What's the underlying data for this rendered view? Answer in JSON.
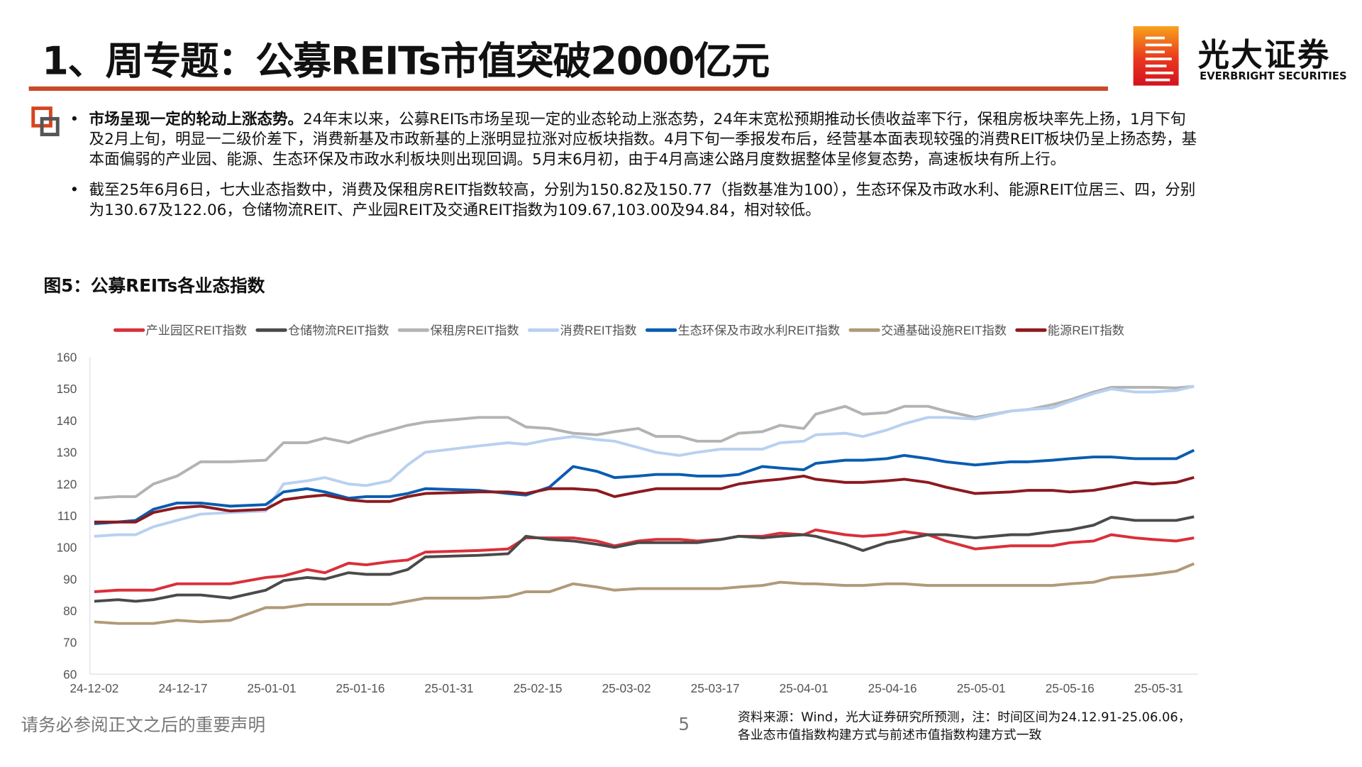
{
  "header": {
    "title": "1、周专题：公募REITs市值突破2000亿元",
    "logo_cn": "光大证券",
    "logo_en": "EVERBRIGHT SECURITIES"
  },
  "bullets": [
    {
      "lead": "市场呈现一定的轮动上涨态势。",
      "text": "24年末以来，公募REITs市场呈现一定的业态轮动上涨态势，24年末宽松预期推动长债收益率下行，保租房板块率先上扬，1月下旬及2月上旬，明显一二级价差下，消费新基及市政新基的上涨明显拉涨对应板块指数。4月下旬一季报发布后，经营基本面表现较强的消费REIT板块仍呈上扬态势，基本面偏弱的产业园、能源、生态环保及市政水利板块则出现回调。5月末6月初，由于4月高速公路月度数据整体呈修复态势，高速板块有所上行。"
    },
    {
      "lead": "",
      "text": "截至25年6月6日，七大业态指数中，消费及保租房REIT指数较高，分别为150.82及150.77（指数基准为100），生态环保及市政水利、能源REIT位居三、四，分别为130.67及122.06，仓储物流REIT、产业园REIT及交通REIT指数为109.67,103.00及94.84，相对较低。"
    }
  ],
  "figure_title": "图5：公募REITs各业态指数",
  "footer": {
    "disclaimer": "请务必参阅正文之后的重要声明",
    "page": "5",
    "source_line1": "资料来源：Wind，光大证券研究所预测，注：时间区间为24.12.91-25.06.06，",
    "source_line2": "各业态市值指数构建方式与前述市值指数构建方式一致"
  },
  "chart_data": {
    "type": "line",
    "title": "",
    "xlabel": "",
    "ylabel": "",
    "ylim": [
      60,
      160
    ],
    "yticks": [
      "60",
      "70",
      "80",
      "90",
      "100",
      "110",
      "120",
      "130",
      "140",
      "150",
      "160"
    ],
    "xticks": [
      "24-12-02",
      "24-12-17",
      "25-01-01",
      "25-01-16",
      "25-01-31",
      "25-02-15",
      "25-03-02",
      "25-03-17",
      "25-04-01",
      "25-04-16",
      "25-05-01",
      "25-05-16",
      "25-05-31"
    ],
    "grid": false,
    "legend": "top",
    "x": [
      "2024-12-02",
      "2024-12-06",
      "2024-12-09",
      "2024-12-12",
      "2024-12-16",
      "2024-12-20",
      "2024-12-25",
      "2024-12-31",
      "2025-01-03",
      "2025-01-07",
      "2025-01-10",
      "2025-01-14",
      "2025-01-17",
      "2025-01-21",
      "2025-01-24",
      "2025-01-27",
      "2025-02-05",
      "2025-02-10",
      "2025-02-13",
      "2025-02-17",
      "2025-02-21",
      "2025-02-25",
      "2025-02-28",
      "2025-03-04",
      "2025-03-07",
      "2025-03-11",
      "2025-03-14",
      "2025-03-18",
      "2025-03-21",
      "2025-03-25",
      "2025-03-28",
      "2025-04-01",
      "2025-04-03",
      "2025-04-08",
      "2025-04-11",
      "2025-04-15",
      "2025-04-18",
      "2025-04-22",
      "2025-04-25",
      "2025-04-30",
      "2025-05-06",
      "2025-05-09",
      "2025-05-13",
      "2025-05-16",
      "2025-05-20",
      "2025-05-23",
      "2025-05-27",
      "2025-05-30",
      "2025-06-03",
      "2025-06-06"
    ],
    "series": [
      {
        "name": "产业园区REIT指数",
        "color": "#d9303a",
        "values": [
          86,
          86.5,
          86.5,
          86.5,
          88.5,
          88.5,
          88.5,
          90.5,
          91,
          93,
          92,
          95,
          94.5,
          95.5,
          96,
          98.5,
          99,
          99.5,
          103,
          103,
          103,
          102,
          100.5,
          102,
          102.5,
          102.5,
          102,
          102.5,
          103.5,
          103.5,
          104.5,
          104,
          105.5,
          104,
          103.5,
          104,
          105,
          104,
          102,
          99.5,
          100.5,
          100.5,
          100.5,
          101.5,
          102,
          104,
          103,
          102.5,
          102,
          103.0
        ]
      },
      {
        "name": "仓储物流REIT指数",
        "color": "#4a4a4a",
        "values": [
          83,
          83.5,
          83,
          83.5,
          85,
          85,
          84,
          86.5,
          89.5,
          90.5,
          90,
          92,
          91.5,
          91.5,
          93,
          97,
          97.5,
          98,
          103.5,
          102.5,
          102,
          101,
          100,
          101.5,
          101.5,
          101.5,
          101.5,
          102.5,
          103.5,
          103,
          103.5,
          104,
          103.5,
          101,
          99,
          101.5,
          102.5,
          104,
          104,
          103,
          104,
          104,
          105,
          105.5,
          107,
          109.5,
          108.5,
          108.5,
          108.5,
          109.67
        ]
      },
      {
        "name": "保租房REIT指数",
        "color": "#b3b3b3",
        "values": [
          115.5,
          116,
          116,
          120,
          122.5,
          127,
          127,
          127.5,
          133,
          133,
          134.5,
          133,
          135,
          137,
          138.5,
          139.5,
          141,
          141,
          138,
          137.5,
          136,
          135.5,
          136.5,
          137.5,
          135,
          135,
          133.5,
          133.5,
          136,
          136.5,
          138.5,
          137.5,
          142,
          144.5,
          142,
          142.5,
          144.5,
          144.5,
          143,
          141,
          143,
          143.5,
          145,
          146.5,
          149,
          150.5,
          150.5,
          150.5,
          150.3,
          150.77
        ]
      },
      {
        "name": "消费REIT指数",
        "color": "#b9d0f0",
        "values": [
          103.5,
          104,
          104,
          106.5,
          108.5,
          110.5,
          111,
          111.5,
          120,
          121,
          122,
          120,
          119.5,
          121,
          126,
          130,
          132,
          133,
          132.5,
          134,
          135,
          134,
          133.5,
          131.5,
          130,
          129,
          130,
          131,
          131,
          131,
          133,
          133.5,
          135.5,
          136,
          135,
          137,
          139,
          141,
          141,
          140.5,
          143,
          143.5,
          144,
          146,
          148.5,
          150,
          149,
          149,
          149.5,
          150.82
        ]
      },
      {
        "name": "生态环保及市政水利REIT指数",
        "color": "#0a5cb0",
        "values": [
          107.5,
          108,
          108.5,
          112,
          114,
          114,
          113,
          113.5,
          117.5,
          118.5,
          117.5,
          115.5,
          116,
          116,
          117,
          118.5,
          118,
          117,
          116.5,
          119,
          125.5,
          124,
          122,
          122.5,
          123,
          123,
          122.5,
          122.5,
          123,
          125.5,
          125,
          124.5,
          126.5,
          127.5,
          127.5,
          128,
          129,
          128,
          127,
          126,
          127,
          127,
          127.5,
          128,
          128.5,
          128.5,
          128,
          128,
          128,
          130.67
        ]
      },
      {
        "name": "交通基础设施REIT指数",
        "color": "#b09a78",
        "values": [
          76.5,
          76,
          76,
          76,
          77,
          76.5,
          77,
          81,
          81,
          82,
          82,
          82,
          82,
          82,
          83,
          84,
          84,
          84.5,
          86,
          86,
          88.5,
          87.5,
          86.5,
          87,
          87,
          87,
          87,
          87,
          87.5,
          88,
          89,
          88.5,
          88.5,
          88,
          88,
          88.5,
          88.5,
          88,
          88,
          88,
          88,
          88,
          88,
          88.5,
          89,
          90.5,
          91,
          91.5,
          92.5,
          94.84
        ]
      },
      {
        "name": "能源REIT指数",
        "color": "#8b1a1f",
        "values": [
          108,
          108,
          108,
          111,
          112.5,
          113,
          111.5,
          112,
          115,
          116,
          116.5,
          115,
          114.5,
          114.5,
          116,
          117,
          117.5,
          117.5,
          117,
          118.5,
          118.5,
          118,
          116,
          117.5,
          118.5,
          118.5,
          118.5,
          118.5,
          120,
          121,
          121.5,
          122.5,
          121.5,
          120.5,
          120.5,
          121,
          121.5,
          120.5,
          119,
          117,
          117.5,
          118,
          118,
          117.5,
          118,
          119,
          120.5,
          120,
          120.5,
          122.06
        ]
      }
    ]
  }
}
